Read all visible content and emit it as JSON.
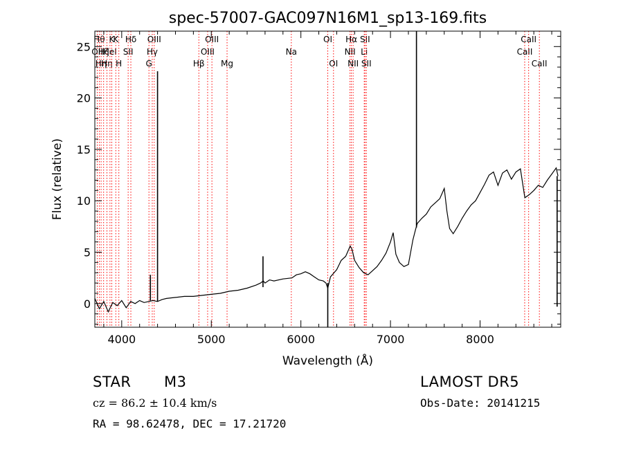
{
  "chart_data": {
    "type": "line",
    "title": "spec-57007-GAC097N16M1_sp13-169.fits",
    "xlabel": "Wavelength (Å)",
    "ylabel": "Flux (relative)",
    "xlim": [
      3700,
      8900
    ],
    "ylim": [
      -2.3,
      26.5
    ],
    "xticks": [
      4000,
      5000,
      6000,
      7000,
      8000
    ],
    "yticks": [
      0,
      5,
      10,
      15,
      20,
      25
    ],
    "grid": false,
    "line_color": "#000000",
    "marker_color": "#ff0000",
    "series": [
      {
        "x": [
          3700,
          3750,
          3800,
          3850,
          3900,
          3950,
          4000,
          4050,
          4100,
          4150,
          4200,
          4250,
          4300,
          4350,
          4400,
          4450,
          4500,
          4600,
          4700,
          4800,
          4900,
          5000,
          5100,
          5200,
          5300,
          5400,
          5500,
          5550,
          5580,
          5600,
          5650,
          5700,
          5800,
          5900,
          5950,
          6000,
          6050,
          6100,
          6150,
          6200,
          6250,
          6280,
          6300,
          6330,
          6400,
          6450,
          6500,
          6550,
          6570,
          6600,
          6650,
          6700,
          6750,
          6800,
          6850,
          6900,
          6950,
          7000,
          7030,
          7060,
          7100,
          7150,
          7200,
          7250,
          7280,
          7300,
          7350,
          7400,
          7450,
          7500,
          7550,
          7600,
          7630,
          7660,
          7700,
          7750,
          7800,
          7850,
          7900,
          7950,
          8000,
          8050,
          8100,
          8150,
          8200,
          8250,
          8300,
          8350,
          8400,
          8450,
          8500,
          8550,
          8600,
          8650,
          8700,
          8750,
          8800,
          8850,
          8870
        ],
        "y": [
          0.5,
          -0.5,
          0.2,
          -0.8,
          0.1,
          -0.2,
          0.3,
          -0.4,
          0.2,
          0.0,
          0.3,
          0.1,
          0.2,
          0.3,
          0.2,
          0.4,
          0.5,
          0.6,
          0.7,
          0.7,
          0.8,
          0.9,
          1.0,
          1.2,
          1.3,
          1.5,
          1.8,
          2.0,
          2.2,
          2.0,
          2.3,
          2.2,
          2.4,
          2.5,
          2.8,
          2.9,
          3.1,
          2.9,
          2.6,
          2.3,
          2.2,
          2.0,
          1.5,
          2.6,
          3.3,
          4.2,
          4.6,
          5.6,
          5.3,
          4.2,
          3.5,
          3.0,
          2.8,
          3.2,
          3.6,
          4.2,
          4.9,
          6.0,
          6.9,
          4.8,
          4.0,
          3.6,
          3.8,
          6.2,
          7.2,
          7.8,
          8.3,
          8.7,
          9.4,
          9.8,
          10.2,
          11.2,
          9.0,
          7.3,
          6.8,
          7.5,
          8.3,
          9.0,
          9.6,
          10.0,
          10.8,
          11.6,
          12.5,
          12.8,
          11.5,
          12.7,
          13.0,
          12.1,
          12.8,
          13.1,
          10.3,
          10.6,
          11.0,
          11.5,
          11.3,
          12.0,
          12.6,
          13.2,
          12.4
        ]
      }
    ],
    "spikes": [
      {
        "x": 4400,
        "y0": 0.2,
        "y1": 22.6
      },
      {
        "x": 4320,
        "y0": 0.3,
        "y1": 2.8
      },
      {
        "x": 5577,
        "y0": 1.6,
        "y1": 4.6
      },
      {
        "x": 6300,
        "y0": 2.0,
        "y1": -2.3
      },
      {
        "x": 7290,
        "y0": 7.4,
        "y1": 26.5
      },
      {
        "x": 8860,
        "y0": 12.4,
        "y1": -0.3
      }
    ],
    "lines": [
      {
        "x": 3727,
        "label": "OII",
        "row": 1
      },
      {
        "x": 3750,
        "label": "Hθ",
        "row": 0
      },
      {
        "x": 3770,
        "label": "Hη",
        "row": 2
      },
      {
        "x": 3798,
        "label": "Hζ",
        "row": 1
      },
      {
        "x": 3835,
        "label": "Hη",
        "row": 2
      },
      {
        "x": 3869,
        "label": "HeI",
        "row": 1
      },
      {
        "x": 3889,
        "label": "K",
        "row": 0
      },
      {
        "x": 3934,
        "label": "K",
        "row": 0
      },
      {
        "x": 3968,
        "label": "H",
        "row": 2
      },
      {
        "x": 4072,
        "label": "SII",
        "row": 1
      },
      {
        "x": 4102,
        "label": "Hδ",
        "row": 0
      },
      {
        "x": 4304,
        "label": "G",
        "row": 2
      },
      {
        "x": 4341,
        "label": "Hγ",
        "row": 1
      },
      {
        "x": 4363,
        "label": "OIII",
        "row": 0
      },
      {
        "x": 4861,
        "label": "Hβ",
        "row": 2
      },
      {
        "x": 4959,
        "label": "OIII",
        "row": 1
      },
      {
        "x": 5007,
        "label": "OIII",
        "row": 0
      },
      {
        "x": 5176,
        "label": "Mg",
        "row": 2
      },
      {
        "x": 5893,
        "label": "Na",
        "row": 1
      },
      {
        "x": 6300,
        "label": "OI",
        "row": 0
      },
      {
        "x": 6364,
        "label": "OI",
        "row": 2
      },
      {
        "x": 6548,
        "label": "NII",
        "row": 1
      },
      {
        "x": 6563,
        "label": "Hα",
        "row": 0
      },
      {
        "x": 6583,
        "label": "NII",
        "row": 2
      },
      {
        "x": 6707,
        "label": "Li",
        "row": 1
      },
      {
        "x": 6716,
        "label": "SII",
        "row": 0
      },
      {
        "x": 6731,
        "label": "SII",
        "row": 2
      },
      {
        "x": 8498,
        "label": "CaII",
        "row": 1
      },
      {
        "x": 8542,
        "label": "CaII",
        "row": 0
      },
      {
        "x": 8662,
        "label": "CaII",
        "row": 2
      }
    ]
  },
  "info": {
    "object_class": "STAR",
    "subclass": "M3",
    "survey": "LAMOST DR5",
    "redshift": "cz = 86.2 ± 10.4 km/s",
    "obs_date": "Obs-Date: 20141215",
    "coords": "RA =  98.62478, DEC =  17.21720"
  }
}
